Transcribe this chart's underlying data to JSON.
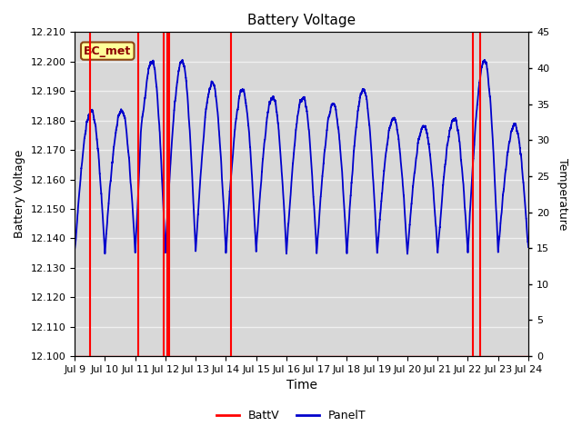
{
  "title": "Battery Voltage",
  "xlabel": "Time",
  "ylabel_left": "Battery Voltage",
  "ylabel_right": "Temperature",
  "ylim_left": [
    12.1,
    12.21
  ],
  "ylim_right": [
    0,
    45
  ],
  "yticks_left": [
    12.1,
    12.11,
    12.12,
    12.13,
    12.14,
    12.15,
    12.16,
    12.17,
    12.18,
    12.19,
    12.2,
    12.21
  ],
  "yticks_right": [
    0,
    5,
    10,
    15,
    20,
    25,
    30,
    35,
    40,
    45
  ],
  "xlim_days": [
    0,
    15
  ],
  "xtick_positions": [
    0,
    1,
    2,
    3,
    4,
    5,
    6,
    7,
    8,
    9,
    10,
    11,
    12,
    13,
    14,
    15
  ],
  "xtick_labels": [
    "Jul 9",
    "Jul 10",
    "Jul 11",
    "Jul 12",
    "Jul 13",
    "Jul 14",
    "Jul 15",
    "Jul 16",
    "Jul 17",
    "Jul 18",
    "Jul 19",
    "Jul 20",
    "Jul 21",
    "Jul 22",
    "Jul 23",
    "Jul 24"
  ],
  "plot_bg_color": "#d8d8d8",
  "fig_bg_color": "#ffffff",
  "grid_color": "#f0f0f0",
  "red_line_color": "#ff0000",
  "blue_line_color": "#0000cc",
  "annotation_text": "BC_met",
  "annotation_bg": "#ffff99",
  "annotation_border": "#8b4513",
  "red_spikes_x": [
    0.5,
    2.1,
    2.95,
    3.05,
    3.12,
    5.18,
    13.18,
    13.42
  ],
  "temp_min": 0,
  "temp_max": 45,
  "volt_min": 12.1,
  "volt_max": 12.21,
  "seed": 42
}
